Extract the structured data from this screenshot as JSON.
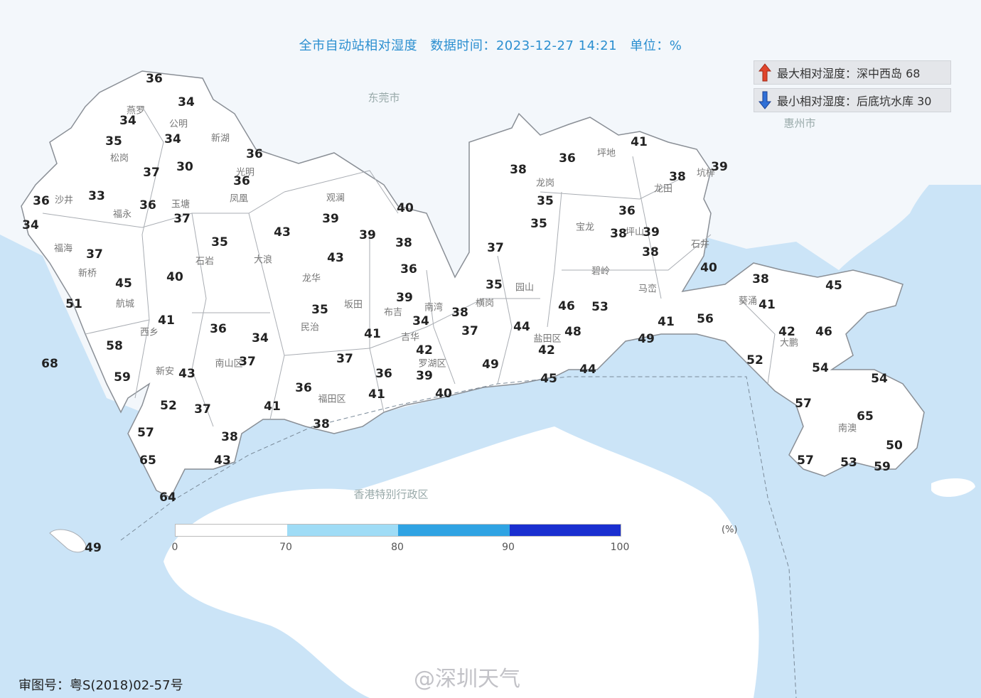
{
  "title": {
    "name": "全市自动站相对湿度",
    "time_label": "数据时间：2023-12-27 14:21",
    "unit_label": "单位：%"
  },
  "extremes": {
    "max": {
      "icon": "red-up-arrow-icon",
      "text": "最大相对湿度：深中西岛 68",
      "color": "#e0452c"
    },
    "min": {
      "icon": "blue-down-arrow-icon",
      "text": "最小相对湿度：后底坑水库 30",
      "color": "#2f6fd6"
    }
  },
  "colors": {
    "sea": "#cbe4f7",
    "land": "#ffffff",
    "border": "#a9adb3"
  },
  "cities": [
    "东莞市",
    "惠州市",
    "香港特别行政区"
  ],
  "places": [
    "燕罗",
    "公明",
    "新湖",
    "松岗",
    "光明",
    "凤凰",
    "沙井",
    "玉塘",
    "观澜",
    "福永",
    "福海",
    "石岩",
    "大浪",
    "龙华",
    "新桥",
    "航城",
    "西乡",
    "新安",
    "民治",
    "坂田",
    "南湾",
    "布吉",
    "吉华",
    "罗湖区",
    "横岗",
    "园山",
    "龙岗",
    "宝龙",
    "坪地",
    "龙田",
    "坑梓",
    "坪山",
    "碧岭",
    "马峦",
    "石井",
    "盐田区",
    "南山区",
    "福田区",
    "葵涌",
    "大鹏",
    "南澳"
  ],
  "stations": [
    36,
    34,
    34,
    35,
    34,
    36,
    37,
    30,
    36,
    36,
    33,
    36,
    37,
    34,
    35,
    37,
    43,
    39,
    39,
    40,
    38,
    43,
    36,
    40,
    45,
    51,
    41,
    36,
    34,
    35,
    39,
    34,
    38,
    41,
    37,
    35,
    37,
    38,
    36,
    41,
    35,
    35,
    38,
    39,
    36,
    38,
    39,
    38,
    40,
    58,
    59,
    68,
    43,
    37,
    37,
    36,
    42,
    39,
    49,
    44,
    48,
    42,
    46,
    53,
    41,
    49,
    56,
    38,
    41,
    45,
    42,
    46,
    52,
    54,
    54,
    57,
    65,
    50,
    57,
    53,
    59,
    52,
    37,
    41,
    36,
    41,
    40,
    38,
    38,
    57,
    65,
    43,
    64,
    44,
    45,
    49
  ],
  "legend": {
    "colors": [
      "#ffffff",
      "#9fdcf6",
      "#2fa3e3",
      "#1a2fd0"
    ],
    "ticks": [
      "0",
      "70",
      "80",
      "90",
      "100"
    ],
    "unit": "(%)"
  },
  "map_number": "审图号：粤S(2018)02-57号",
  "watermark": "@深圳天气"
}
